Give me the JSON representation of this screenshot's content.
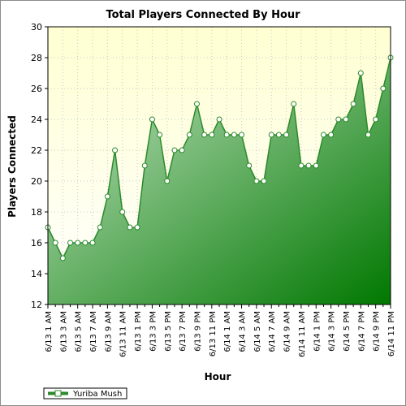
{
  "chart_data": {
    "type": "area",
    "title": "Total Players Connected By Hour",
    "xlabel": "Hour",
    "ylabel": "Players Connected",
    "ylim": [
      12,
      30
    ],
    "yticks": [
      12,
      14,
      16,
      18,
      20,
      22,
      24,
      26,
      28,
      30
    ],
    "grid": true,
    "legend_position": "bottom-left",
    "colors": {
      "line": "#2c8a2c",
      "fill_top": "#c8e6c8",
      "fill_bottom": "#007800",
      "plot_top": "#ffffd2",
      "plot_bottom": "#ffffff"
    },
    "x_tick_labels": [
      "6/13 1 AM",
      "6/13 3 AM",
      "6/13 5 AM",
      "6/13 7 AM",
      "6/13 9 AM",
      "6/13 11 AM",
      "6/13 1 PM",
      "6/13 3 PM",
      "6/13 5 PM",
      "6/13 7 PM",
      "6/13 9 PM",
      "6/13 11 PM",
      "6/14 1 AM",
      "6/14 3 AM",
      "6/14 5 AM",
      "6/14 7 AM",
      "6/14 9 AM",
      "6/14 11 AM",
      "6/14 1 PM",
      "6/14 3 PM",
      "6/14 5 PM",
      "6/14 7 PM",
      "6/14 9 PM",
      "6/14 11 PM"
    ],
    "series": [
      {
        "name": "Yuriba Mush",
        "values": [
          17,
          16,
          15,
          16,
          16,
          16,
          16,
          17,
          19,
          22,
          18,
          17,
          17,
          21,
          24,
          23,
          20,
          22,
          22,
          23,
          25,
          23,
          23,
          24,
          23,
          23,
          23,
          21,
          20,
          20,
          23,
          23,
          23,
          25,
          21,
          21,
          21,
          23,
          23,
          24,
          24,
          25,
          27,
          23,
          24,
          26,
          28
        ]
      }
    ]
  }
}
